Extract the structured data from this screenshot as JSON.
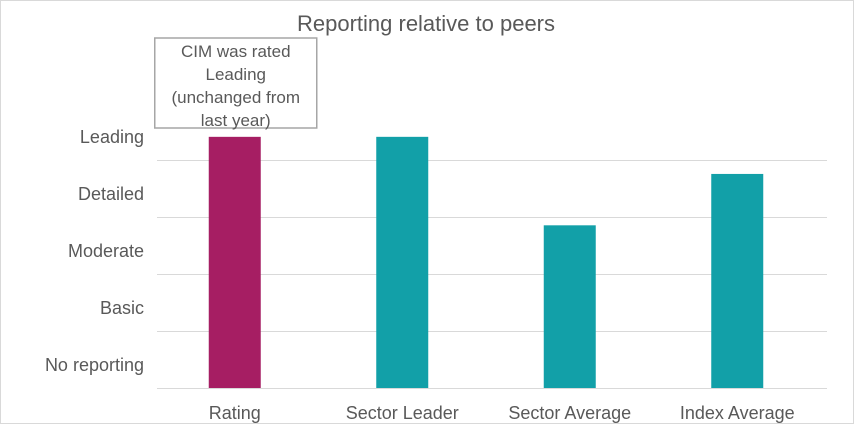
{
  "chart_data": {
    "type": "bar",
    "title": "Reporting relative to peers",
    "categories": [
      "Rating",
      "Sector Leader",
      "Sector Average",
      "Index Average"
    ],
    "values": [
      4,
      4,
      2.45,
      3.35
    ],
    "y_tick_labels": [
      "No reporting",
      "Basic",
      "Moderate",
      "Detailed",
      "Leading"
    ],
    "ylim": [
      -0.4,
      4.4
    ],
    "grid": true,
    "bar_colors": [
      "#a61e63",
      "#12a0a8",
      "#12a0a8",
      "#12a0a8"
    ],
    "annotation": {
      "category": "Rating",
      "lines": [
        "CIM was rated",
        "Leading",
        "(unchanged from",
        "last year)"
      ]
    }
  }
}
